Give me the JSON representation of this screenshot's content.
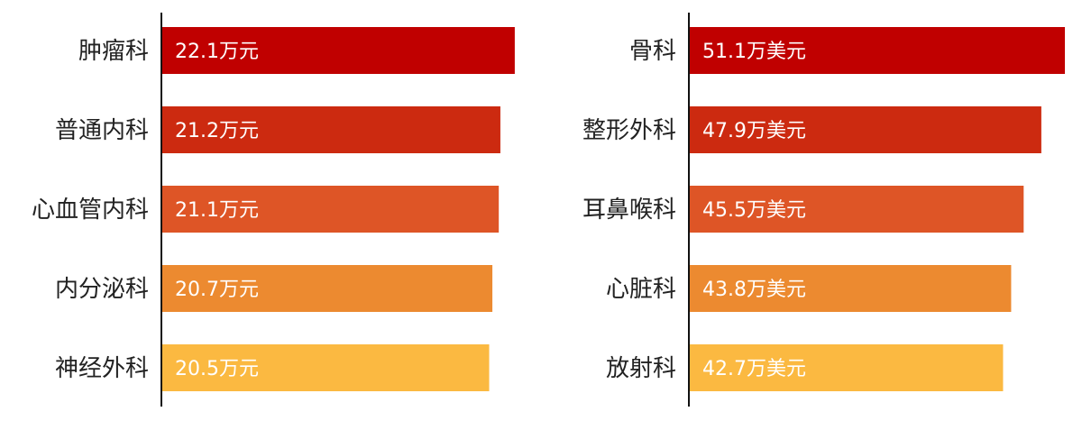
{
  "chart_data": [
    {
      "type": "bar",
      "orientation": "horizontal",
      "categories": [
        "肿瘤科",
        "普通内科",
        "心血管内科",
        "内分泌科",
        "神经外科"
      ],
      "values": [
        22.1,
        21.2,
        21.1,
        20.7,
        20.5
      ],
      "value_labels": [
        "22.1万元",
        "21.2万元",
        "21.1万元",
        "20.7万元",
        "20.5万元"
      ],
      "colors": [
        "#c00000",
        "#cc2a10",
        "#de5526",
        "#ec8a30",
        "#fbb941"
      ],
      "xlim": [
        0,
        22.5
      ],
      "grid": false
    },
    {
      "type": "bar",
      "orientation": "horizontal",
      "categories": [
        "骨科",
        "整形外科",
        "耳鼻喉科",
        "心脏科",
        "放射科"
      ],
      "values": [
        51.1,
        47.9,
        45.5,
        43.8,
        42.7
      ],
      "value_labels": [
        "51.1万美元",
        "47.9万美元",
        "45.5万美元",
        "43.8万美元",
        "42.7万美元"
      ],
      "colors": [
        "#c00000",
        "#cc2a10",
        "#de5526",
        "#ec8a30",
        "#fbb941"
      ],
      "xlim": [
        0,
        51.1
      ],
      "grid": false
    }
  ]
}
